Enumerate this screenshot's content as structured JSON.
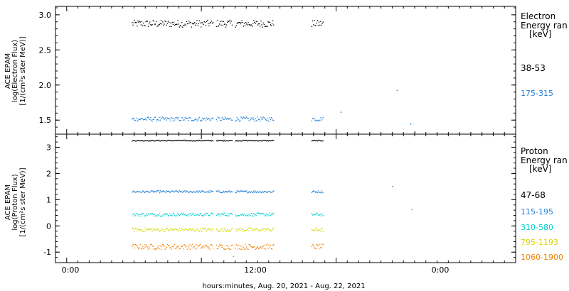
{
  "chart_data": [
    {
      "type": "scatter",
      "panel": "electron",
      "ylabel_lines": [
        "ACE EPAM",
        "log(Electron Flux)",
        "[1/(cm²s ster MeV)]"
      ],
      "ylim": [
        1.3,
        3.12
      ],
      "y_ticks": [
        1.5,
        2.0,
        2.5,
        3.0
      ],
      "y_tick_labels": [
        "1.5",
        "2.0",
        "2.5",
        "3.0"
      ],
      "legend_title_lines": [
        "Electron",
        "Energy ran",
        "[keV]"
      ],
      "series": [
        {
          "name": "38-53",
          "color": "#000000",
          "level": 2.88,
          "spread": 0.05
        },
        {
          "name": "175-315",
          "color": "#1f7fd6",
          "level": 1.52,
          "spread": 0.03
        }
      ],
      "outliers": [
        {
          "hours": 29.4,
          "value": 1.93,
          "series": "175-315"
        },
        {
          "hours": 31.0,
          "value": 1.34,
          "series": "175-315"
        },
        {
          "hours": 24.4,
          "value": 1.62,
          "series": "175-315"
        },
        {
          "hours": 30.6,
          "value": 1.45,
          "series": "175-315"
        }
      ]
    },
    {
      "type": "scatter",
      "panel": "proton",
      "ylabel_lines": [
        "ACE EPAM",
        "log(Proton Flux)",
        "[1/(cm²s ster MeV)]"
      ],
      "ylim": [
        -1.4,
        3.5
      ],
      "y_ticks": [
        -1,
        0,
        1,
        2,
        3
      ],
      "y_tick_labels": [
        "-1",
        "0",
        "1",
        "2",
        "3"
      ],
      "legend_title_lines": [
        "Proton",
        "Energy ran",
        "[keV]"
      ],
      "series": [
        {
          "name": "47-68",
          "color": "#000000",
          "level": 3.27,
          "spread": 0.02
        },
        {
          "name": "115-195",
          "color": "#1f7fd6",
          "level": 1.32,
          "spread": 0.04
        },
        {
          "name": "310-580",
          "color": "#00d0d0",
          "level": 0.45,
          "spread": 0.06
        },
        {
          "name": "795-1193",
          "color": "#d6d600",
          "level": -0.13,
          "spread": 0.07
        },
        {
          "name": "1060-1900",
          "color": "#f08000",
          "level": -0.78,
          "spread": 0.1
        }
      ],
      "outliers": [
        {
          "hours": 29.0,
          "value": 1.52,
          "series": "115-195"
        },
        {
          "hours": 30.7,
          "value": 0.65,
          "series": "310-580"
        },
        {
          "hours": 14.8,
          "value": -1.15,
          "series": "1060-1900"
        }
      ]
    }
  ],
  "time_axis": {
    "xlabel": "hours:minutes, Aug. 20, 2021 - Aug. 22, 2021",
    "range_hours": [
      -1,
      40
    ],
    "tick_labels": [
      "0:00",
      "12:00",
      "0:00"
    ],
    "tick_hours": [
      0,
      12,
      24
    ],
    "minor_step_hours": 1,
    "data_segments_hours": [
      [
        5.8,
        13.0
      ],
      [
        13.3,
        14.7
      ],
      [
        15.0,
        18.4
      ],
      [
        21.8,
        22.8
      ]
    ]
  }
}
